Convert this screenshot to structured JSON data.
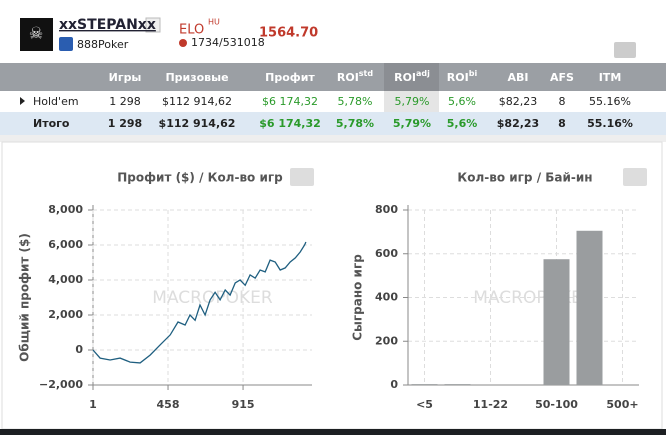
{
  "header": {
    "username": "xxSTEPANxx",
    "network": "888Poker",
    "elo_label": "ELO",
    "elo_region": "HU",
    "elo_rank": "1734/531018",
    "elo_value": "1564.70"
  },
  "table": {
    "columns": [
      {
        "label": "Игры"
      },
      {
        "label": "Призовые"
      },
      {
        "label": "Профит"
      },
      {
        "label": "ROI",
        "sup": "std"
      },
      {
        "label": "ROI",
        "sup": "adj"
      },
      {
        "label": "ROI",
        "sup": "bi"
      },
      {
        "label": "ABI"
      },
      {
        "label": "AFS"
      },
      {
        "label": "ITM"
      }
    ],
    "rows": [
      [
        "Hold'em",
        "1 298",
        "$112 914,62",
        "$6 174,32",
        "5,78%",
        "5,79%",
        "5,6%",
        "$82,23",
        "8",
        "55.16%"
      ],
      [
        "Итого",
        "1 298",
        "$112 914,62",
        "$6 174,32",
        "5,78%",
        "5,79%",
        "5,6%",
        "$82,23",
        "8",
        "55.16%"
      ]
    ]
  },
  "charts": [
    {
      "type": "line",
      "title": "Профит ($) / Кол-во игр",
      "ylabel": "Общий профит ($)",
      "watermark": "MACROPOKER",
      "color": "#1f5f80",
      "grid": true,
      "x": [
        1,
        44,
        105,
        166,
        227,
        288,
        349,
        410,
        471,
        519,
        562,
        592,
        623,
        653,
        684,
        714,
        745,
        775,
        806,
        836,
        867,
        897,
        928,
        958,
        989,
        1019,
        1050,
        1080,
        1111,
        1141,
        1172,
        1202,
        1233,
        1263,
        1290,
        1298
      ],
      "values": [
        0,
        -460,
        -570,
        -460,
        -690,
        -740,
        -290,
        290,
        860,
        1600,
        1430,
        2000,
        1700,
        2570,
        2000,
        2860,
        3300,
        2860,
        3430,
        3140,
        3830,
        4000,
        3700,
        4290,
        4110,
        4570,
        4460,
        5140,
        5030,
        4570,
        4690,
        5030,
        5260,
        5600,
        6000,
        6170
      ],
      "xlim": [
        1,
        1335
      ],
      "xticks": [
        1,
        458,
        915
      ],
      "ylim": [
        -2000,
        8000
      ],
      "yticks": [
        {
          "value": 8000,
          "label": "8,000"
        },
        {
          "value": 6000,
          "label": "6,000"
        },
        {
          "value": 4000,
          "label": "4,000"
        },
        {
          "value": 2000,
          "label": "2,000"
        },
        0,
        {
          "value": -2000,
          "label": "−2,000"
        }
      ]
    },
    {
      "type": "bar",
      "title": "Кол-во игр / Бай-ин",
      "ylabel": "Сыграно игр",
      "watermark": "MACROPOKER",
      "color": "#9a9d9f",
      "grid": true,
      "categories": [
        "<5",
        null,
        "11-22",
        null,
        "50-100",
        null,
        "500+"
      ],
      "values": [
        4,
        4,
        0,
        0,
        575,
        705,
        0
      ],
      "ylim": [
        0,
        800
      ],
      "yticks": [
        0,
        200,
        400,
        600,
        800
      ]
    }
  ]
}
